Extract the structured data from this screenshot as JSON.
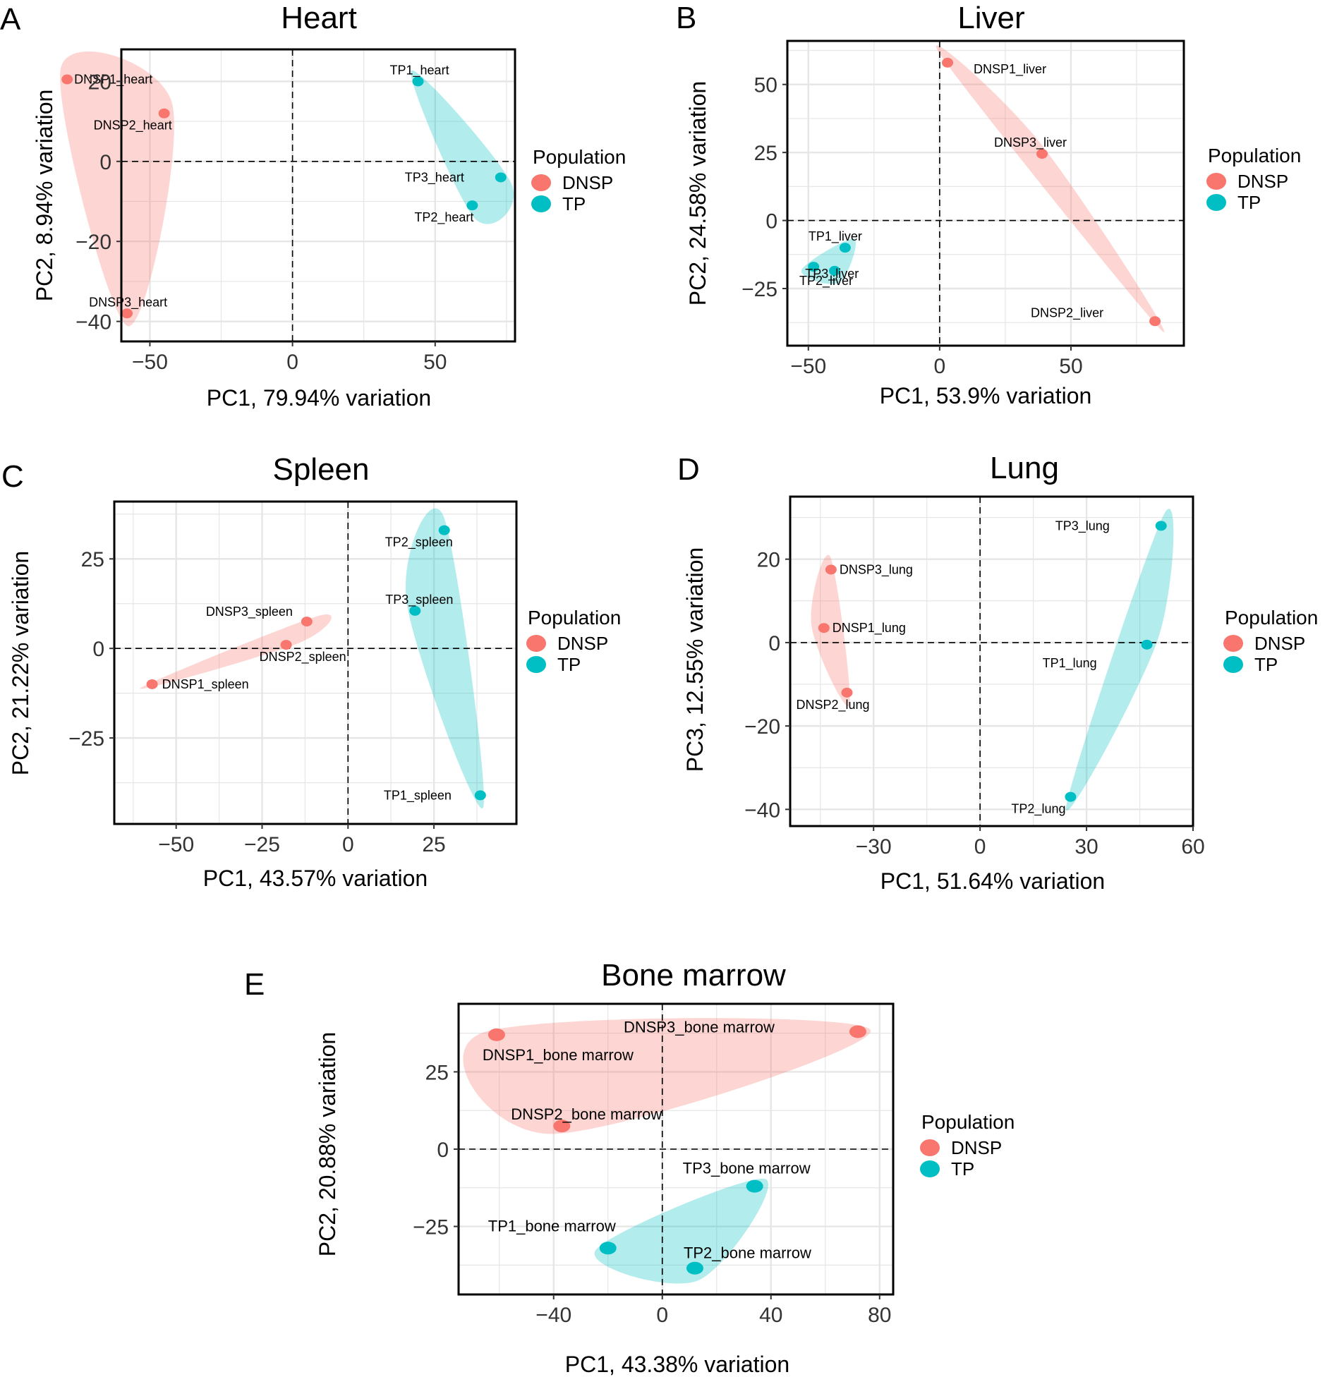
{
  "figure": {
    "panels": [
      "A",
      "B",
      "C",
      "D",
      "E"
    ]
  },
  "legend": {
    "title": "Population",
    "entries": [
      {
        "name": "DNSP",
        "color": "#F8766D"
      },
      {
        "name": "TP",
        "color": "#00BFC4"
      }
    ]
  },
  "colors": {
    "DNSP": "#F8766D",
    "TP": "#00BFC4",
    "hull_DNSP": "#F8766D",
    "hull_TP": "#00BFC4",
    "grid": "#e6e6e6",
    "frame": "#000000"
  },
  "chart_data": [
    {
      "panel": "A",
      "type": "scatter",
      "title": "Heart",
      "xlabel": "PC1, 79.94% variation",
      "ylabel": "PC2, 8.94% variation",
      "xlim": [
        -60,
        78
      ],
      "ylim": [
        -45,
        28
      ],
      "xticks": [
        -50,
        0,
        50
      ],
      "yticks": [
        -40,
        -20,
        0,
        20
      ],
      "xtick_labels": [
        "−50",
        "0",
        "50"
      ],
      "ytick_labels": [
        "−40",
        "−20",
        "0",
        "20"
      ],
      "points": [
        {
          "label": "DNSP1_heart",
          "group": "DNSP",
          "x": -79,
          "y": 20.5
        },
        {
          "label": "DNSP2_heart",
          "group": "DNSP",
          "x": -45,
          "y": 12
        },
        {
          "label": "DNSP3_heart",
          "group": "DNSP",
          "x": -58,
          "y": -38
        },
        {
          "label": "TP1_heart",
          "group": "TP",
          "x": 44,
          "y": 20
        },
        {
          "label": "TP2_heart",
          "group": "TP",
          "x": 63,
          "y": -11
        },
        {
          "label": "TP3_heart",
          "group": "TP",
          "x": 73,
          "y": -4
        }
      ]
    },
    {
      "panel": "B",
      "type": "scatter",
      "title": "Liver",
      "xlabel": "PC1, 53.9% variation",
      "ylabel": "PC2, 24.58% variation",
      "xlim": [
        -58,
        93
      ],
      "ylim": [
        -46,
        66
      ],
      "xticks": [
        -50,
        0,
        50
      ],
      "yticks": [
        -25,
        0,
        25,
        50
      ],
      "xtick_labels": [
        "−50",
        "0",
        "50"
      ],
      "ytick_labels": [
        "−25",
        "0",
        "25",
        "50"
      ],
      "points": [
        {
          "label": "DNSP1_liver",
          "group": "DNSP",
          "x": 3,
          "y": 58
        },
        {
          "label": "DNSP2_liver",
          "group": "DNSP",
          "x": 82,
          "y": -37
        },
        {
          "label": "DNSP3_liver",
          "group": "DNSP",
          "x": 39,
          "y": 24.5
        },
        {
          "label": "TP1_liver",
          "group": "TP",
          "x": -36,
          "y": -10
        },
        {
          "label": "TP2_liver",
          "group": "TP",
          "x": -40,
          "y": -18.5
        },
        {
          "label": "TP3_liver",
          "group": "TP",
          "x": -48,
          "y": -17
        }
      ]
    },
    {
      "panel": "C",
      "type": "scatter",
      "title": "Spleen",
      "xlabel": "PC1, 43.57% variation",
      "ylabel": "PC2, 21.22% variation",
      "xlim": [
        -68,
        49
      ],
      "ylim": [
        -49,
        41
      ],
      "xticks": [
        -50,
        -25,
        0,
        25
      ],
      "yticks": [
        -25,
        0,
        25
      ],
      "xtick_labels": [
        "−50",
        "−25",
        "0",
        "25"
      ],
      "ytick_labels": [
        "−25",
        "0",
        "25"
      ],
      "points": [
        {
          "label": "DNSP1_spleen",
          "group": "DNSP",
          "x": -57,
          "y": -10
        },
        {
          "label": "DNSP2_spleen",
          "group": "DNSP",
          "x": -18,
          "y": 1
        },
        {
          "label": "DNSP3_spleen",
          "group": "DNSP",
          "x": -12,
          "y": 7.5
        },
        {
          "label": "TP1_spleen",
          "group": "TP",
          "x": 38.5,
          "y": -41
        },
        {
          "label": "TP2_spleen",
          "group": "TP",
          "x": 28,
          "y": 33
        },
        {
          "label": "TP3_spleen",
          "group": "TP",
          "x": 19.5,
          "y": 10.5
        }
      ]
    },
    {
      "panel": "D",
      "type": "scatter",
      "title": "Lung",
      "xlabel": "PC1, 51.64% variation",
      "ylabel": "PC3, 12.55% variation",
      "xlim": [
        -53.5,
        60
      ],
      "ylim": [
        -44,
        35
      ],
      "xticks": [
        -30,
        0,
        30,
        60
      ],
      "yticks": [
        -40,
        -20,
        0,
        20
      ],
      "xtick_labels": [
        "−30",
        "0",
        "30",
        "60"
      ],
      "ytick_labels": [
        "−40",
        "−20",
        "0",
        "20"
      ],
      "points": [
        {
          "label": "DNSP1_lung",
          "group": "DNSP",
          "x": -44,
          "y": 3.5
        },
        {
          "label": "DNSP2_lung",
          "group": "DNSP",
          "x": -37.5,
          "y": -12
        },
        {
          "label": "DNSP3_lung",
          "group": "DNSP",
          "x": -42,
          "y": 17.5
        },
        {
          "label": "TP1_lung",
          "group": "TP",
          "x": 47,
          "y": -0.5
        },
        {
          "label": "TP2_lung",
          "group": "TP",
          "x": 25.5,
          "y": -37
        },
        {
          "label": "TP3_lung",
          "group": "TP",
          "x": 51,
          "y": 28
        }
      ]
    },
    {
      "panel": "E",
      "type": "scatter",
      "title": "Bone marrow",
      "xlabel": "PC1, 43.38% variation",
      "ylabel": "PC2, 20.88% variation",
      "xlim": [
        -75,
        85
      ],
      "ylim": [
        -47,
        47
      ],
      "xticks": [
        -40,
        0,
        40,
        80
      ],
      "yticks": [
        -25,
        0,
        25
      ],
      "xtick_labels": [
        "−40",
        "0",
        "40",
        "80"
      ],
      "ytick_labels": [
        "−25",
        "0",
        "25"
      ],
      "points": [
        {
          "label": "DNSP1_bone marrow",
          "group": "DNSP",
          "x": -61,
          "y": 37
        },
        {
          "label": "DNSP2_bone marrow",
          "group": "DNSP",
          "x": -37,
          "y": 7.5
        },
        {
          "label": "DNSP3_bone marrow",
          "group": "DNSP",
          "x": 72,
          "y": 38
        },
        {
          "label": "TP1_bone marrow",
          "group": "TP",
          "x": -20,
          "y": -32
        },
        {
          "label": "TP2_bone marrow",
          "group": "TP",
          "x": 12,
          "y": -38.5
        },
        {
          "label": "TP3_bone marrow",
          "group": "TP",
          "x": 34,
          "y": -12
        }
      ]
    }
  ]
}
